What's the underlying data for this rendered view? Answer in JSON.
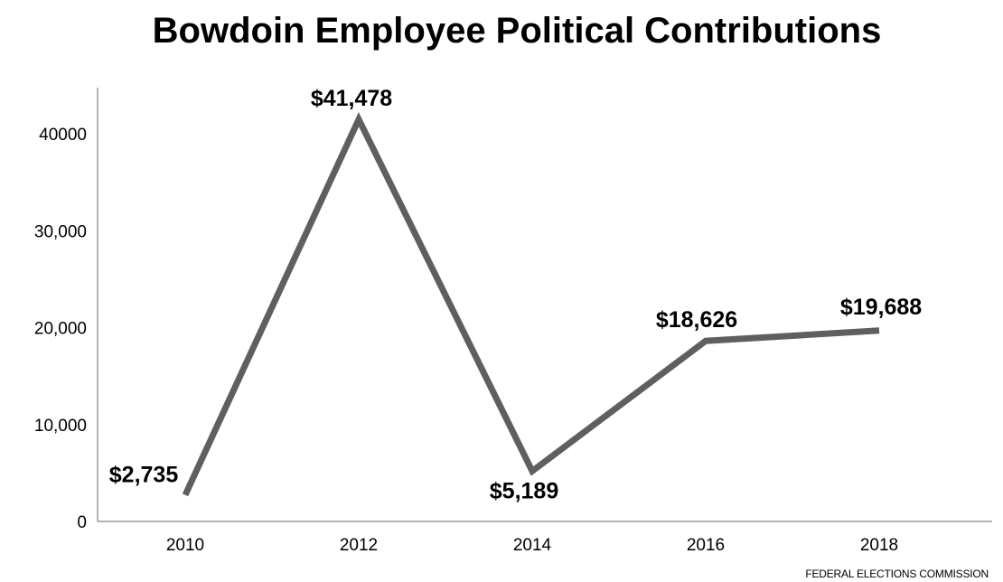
{
  "chart_data": {
    "type": "line",
    "title": "Bowdoin Employee Political Contributions",
    "xlabel": "",
    "ylabel": "",
    "categories": [
      "2010",
      "2012",
      "2014",
      "2016",
      "2018"
    ],
    "values": [
      2735,
      41478,
      5189,
      18626,
      19688
    ],
    "data_labels": [
      "$2,735",
      "$41,478",
      "$5,189",
      "$18,626",
      "$19,688"
    ],
    "y_ticks": [
      {
        "value": 0,
        "label": "0"
      },
      {
        "value": 10000,
        "label": "10,000"
      },
      {
        "value": 20000,
        "label": "20,000"
      },
      {
        "value": 30000,
        "label": "30,000"
      },
      {
        "value": 40000,
        "label": "40000"
      }
    ],
    "ylim": [
      0,
      45000
    ],
    "grid": false,
    "legend": "none",
    "source": "FEDERAL ELECTIONS COMMISSION",
    "colors": {
      "line": "#5f5f5f",
      "axis": "#9a9a9a",
      "text": "#000000"
    }
  }
}
